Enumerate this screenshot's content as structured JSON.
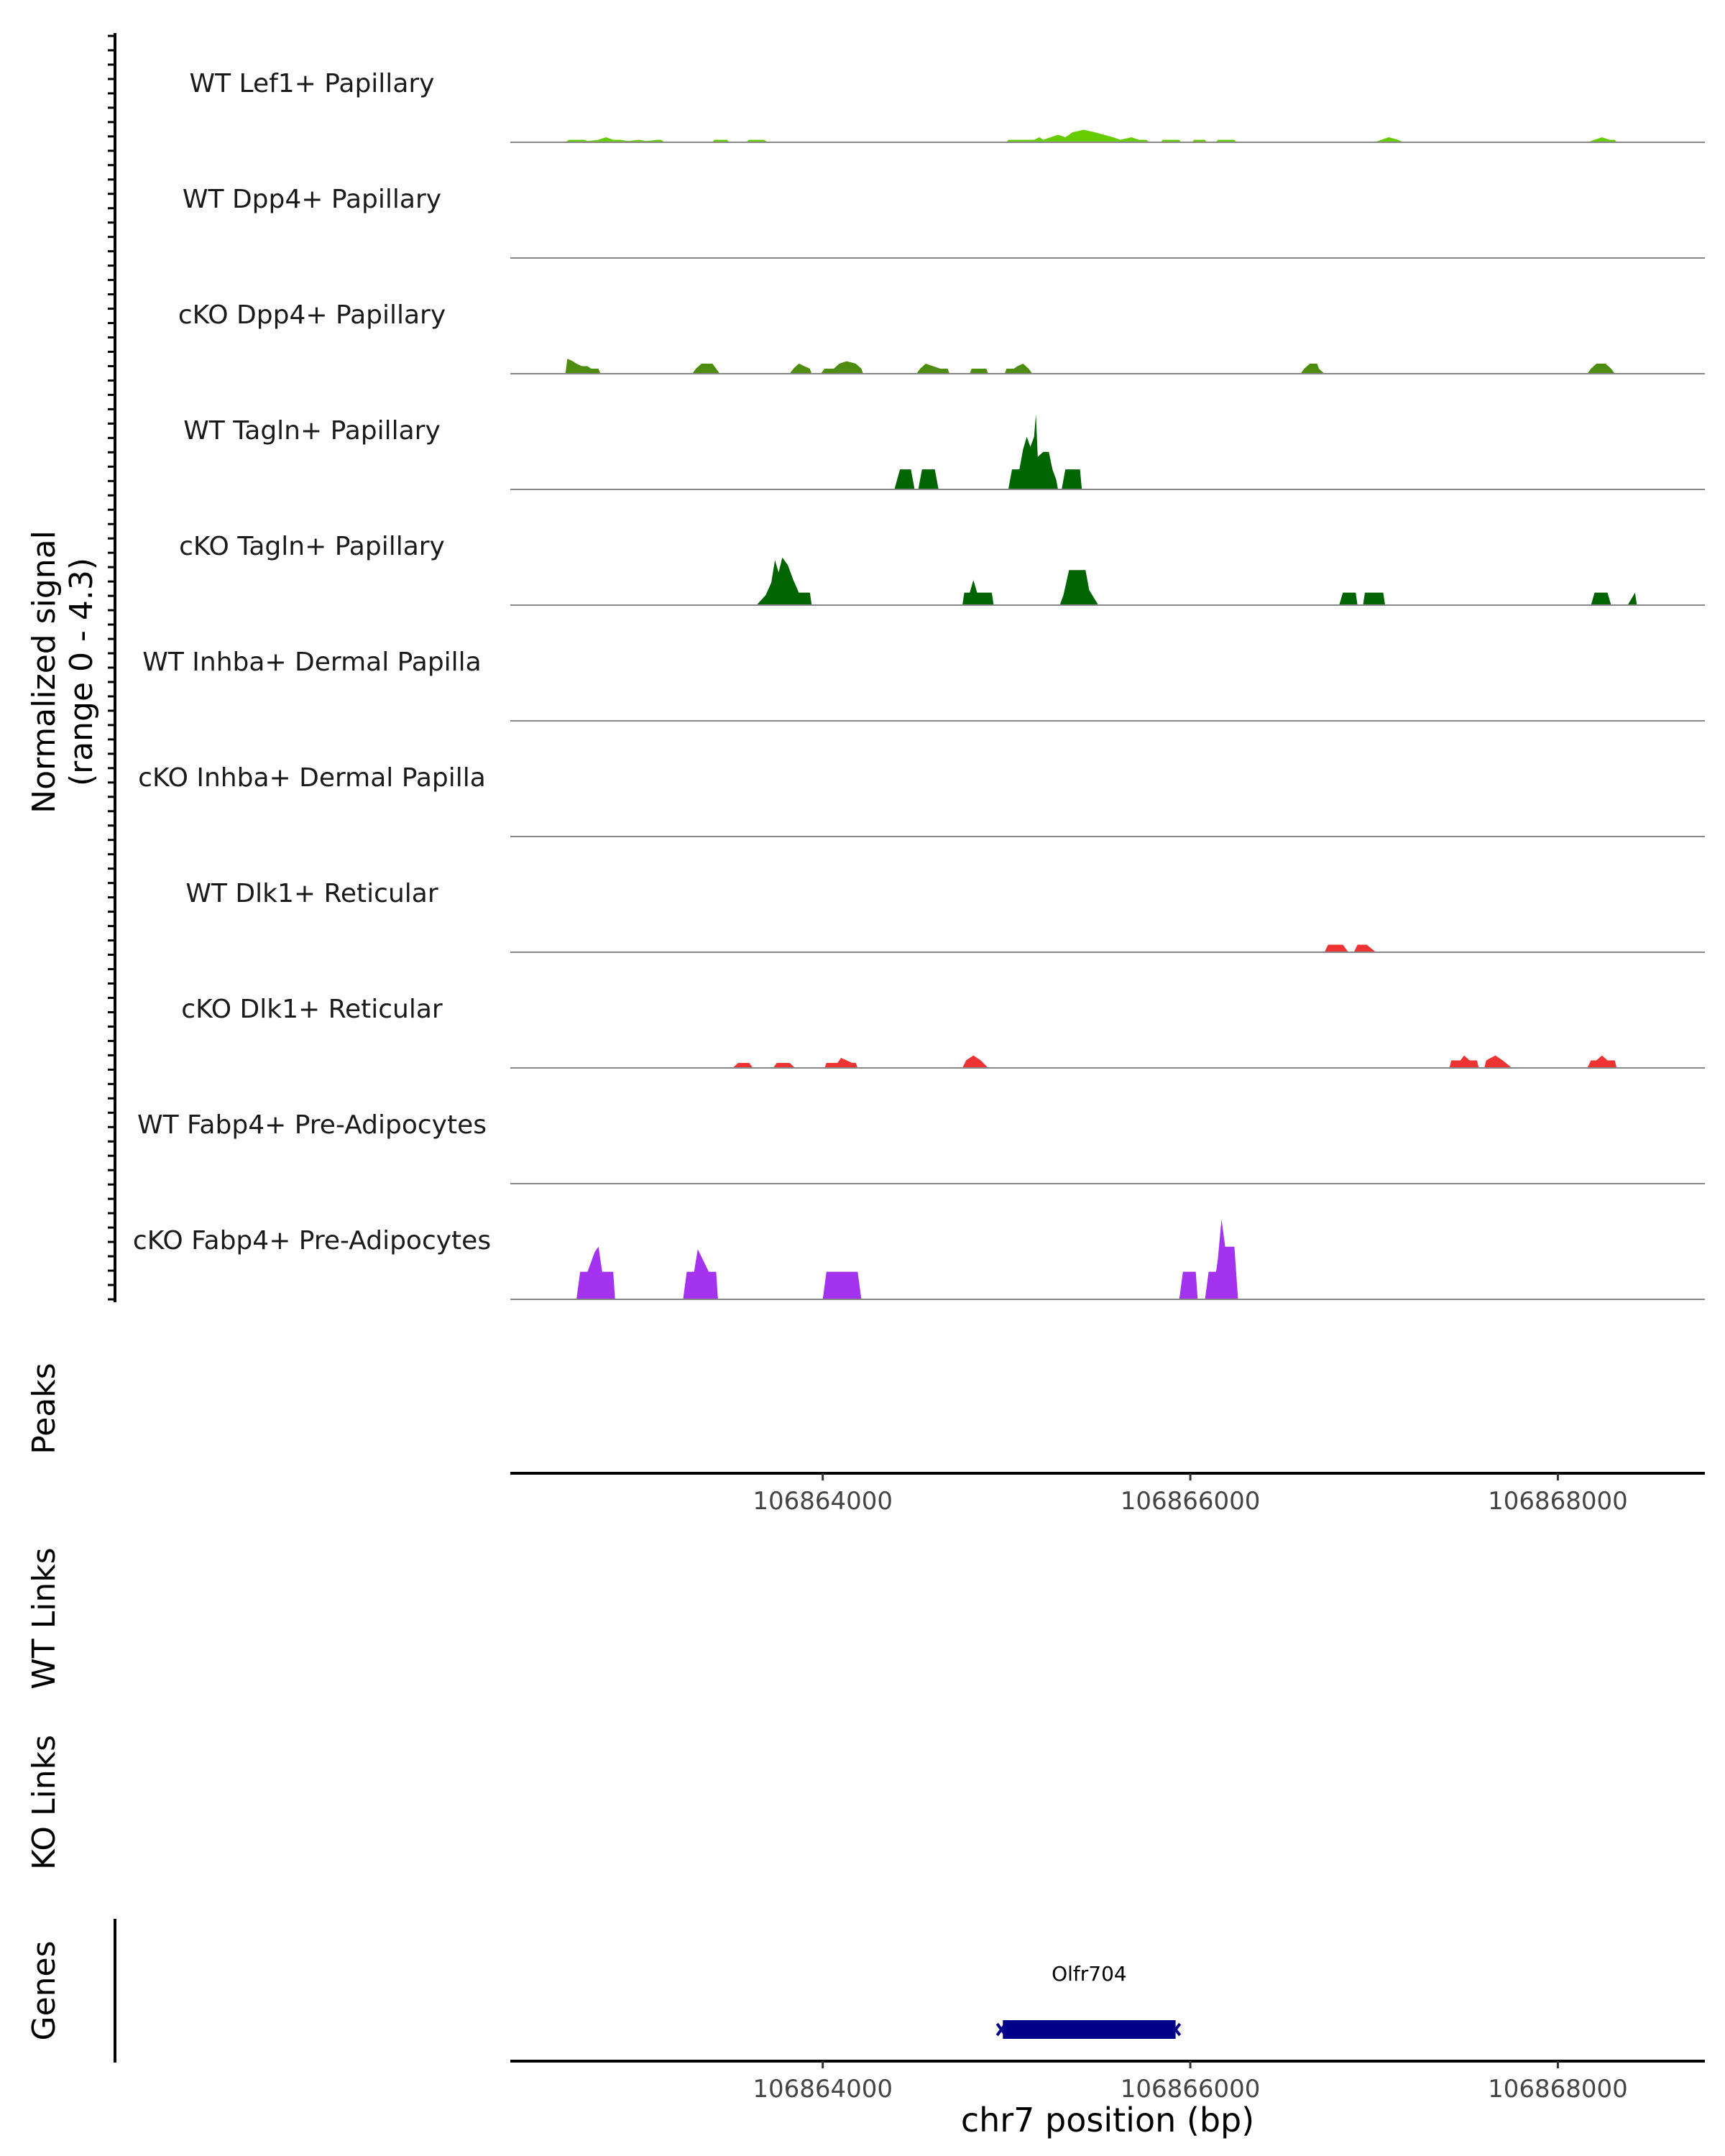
{
  "chart_data": {
    "type": "area",
    "title": "",
    "chromosome": "chr7",
    "xlabel": "chr7 position (bp)",
    "xlim": [
      106862300,
      106868800
    ],
    "x_ticks": [
      106864000,
      106866000,
      106868000
    ],
    "x_tick_labels": [
      "106864000",
      "106866000",
      "106868000"
    ],
    "coverage_ylabel": "Normalized signal",
    "coverage_range_label": "(range 0 - 4.3)",
    "ylim": [
      0,
      4.3
    ],
    "tracks": [
      {
        "name": "WT Lef1+ Papillary",
        "color": "#66CC00",
        "points": [
          [
            106862600,
            0
          ],
          [
            106862620,
            0.1
          ],
          [
            106862700,
            0.1
          ],
          [
            106862720,
            0.05
          ],
          [
            106862780,
            0.1
          ],
          [
            106862820,
            0.2
          ],
          [
            106862860,
            0.1
          ],
          [
            106862900,
            0.1
          ],
          [
            106862940,
            0.05
          ],
          [
            106863000,
            0.1
          ],
          [
            106863040,
            0.05
          ],
          [
            106863100,
            0.1
          ],
          [
            106863120,
            0.1
          ],
          [
            106863140,
            0
          ],
          [
            106863400,
            0
          ],
          [
            106863410,
            0.1
          ],
          [
            106863480,
            0.1
          ],
          [
            106863490,
            0
          ],
          [
            106863580,
            0
          ],
          [
            106863600,
            0.1
          ],
          [
            106863680,
            0.1
          ],
          [
            106863700,
            0
          ],
          [
            106865000,
            0
          ],
          [
            106865010,
            0.1
          ],
          [
            106865150,
            0.1
          ],
          [
            106865180,
            0.2
          ],
          [
            106865200,
            0.1
          ],
          [
            106865240,
            0.2
          ],
          [
            106865280,
            0.3
          ],
          [
            106865320,
            0.2
          ],
          [
            106865360,
            0.4
          ],
          [
            106865420,
            0.5
          ],
          [
            106865480,
            0.4
          ],
          [
            106865530,
            0.3
          ],
          [
            106865580,
            0.2
          ],
          [
            106865620,
            0.1
          ],
          [
            106865680,
            0.2
          ],
          [
            106865720,
            0.1
          ],
          [
            106865760,
            0.1
          ],
          [
            106865780,
            0
          ],
          [
            106865840,
            0
          ],
          [
            106865850,
            0.1
          ],
          [
            106865940,
            0.1
          ],
          [
            106865950,
            0
          ],
          [
            106866010,
            0
          ],
          [
            106866020,
            0.1
          ],
          [
            106866080,
            0.1
          ],
          [
            106866090,
            0
          ],
          [
            106866140,
            0
          ],
          [
            106866150,
            0.1
          ],
          [
            106866240,
            0.1
          ],
          [
            106866250,
            0
          ],
          [
            106867000,
            0
          ],
          [
            106867040,
            0.1
          ],
          [
            106867080,
            0.2
          ],
          [
            106867130,
            0.1
          ],
          [
            106867160,
            0
          ],
          [
            106868160,
            0
          ],
          [
            106868200,
            0.1
          ],
          [
            106868240,
            0.2
          ],
          [
            106868280,
            0.1
          ],
          [
            106868310,
            0.1
          ],
          [
            106868320,
            0
          ]
        ]
      },
      {
        "name": "WT Dpp4+ Papillary",
        "color": "#4D8C0F",
        "points": []
      },
      {
        "name": "cKO Dpp4+ Papillary",
        "color": "#4D8C0F",
        "points": [
          [
            106862600,
            0
          ],
          [
            106862610,
            0.6
          ],
          [
            106862640,
            0.5
          ],
          [
            106862660,
            0.4
          ],
          [
            106862690,
            0.3
          ],
          [
            106862720,
            0.3
          ],
          [
            106862740,
            0.2
          ],
          [
            106862780,
            0.2
          ],
          [
            106862790,
            0
          ],
          [
            106863290,
            0
          ],
          [
            106863310,
            0.2
          ],
          [
            106863340,
            0.4
          ],
          [
            106863400,
            0.4
          ],
          [
            106863420,
            0.2
          ],
          [
            106863440,
            0
          ],
          [
            106863820,
            0
          ],
          [
            106863840,
            0.2
          ],
          [
            106863870,
            0.4
          ],
          [
            106863900,
            0.3
          ],
          [
            106863930,
            0.2
          ],
          [
            106863940,
            0
          ],
          [
            106863990,
            0
          ],
          [
            106864010,
            0.2
          ],
          [
            106864060,
            0.2
          ],
          [
            106864090,
            0.4
          ],
          [
            106864130,
            0.5
          ],
          [
            106864180,
            0.4
          ],
          [
            106864210,
            0.2
          ],
          [
            106864220,
            0
          ],
          [
            106864510,
            0
          ],
          [
            106864530,
            0.2
          ],
          [
            106864560,
            0.4
          ],
          [
            106864600,
            0.3
          ],
          [
            106864640,
            0.2
          ],
          [
            106864680,
            0.2
          ],
          [
            106864690,
            0
          ],
          [
            106864800,
            0
          ],
          [
            106864810,
            0.2
          ],
          [
            106864890,
            0.2
          ],
          [
            106864900,
            0
          ],
          [
            106864990,
            0
          ],
          [
            106865000,
            0.2
          ],
          [
            106865040,
            0.2
          ],
          [
            106865060,
            0.3
          ],
          [
            106865090,
            0.4
          ],
          [
            106865120,
            0.2
          ],
          [
            106865140,
            0
          ],
          [
            106866600,
            0
          ],
          [
            106866620,
            0.2
          ],
          [
            106866650,
            0.4
          ],
          [
            106866690,
            0.4
          ],
          [
            106866700,
            0.2
          ],
          [
            106866730,
            0
          ],
          [
            106868160,
            0
          ],
          [
            106868180,
            0.2
          ],
          [
            106868210,
            0.4
          ],
          [
            106868260,
            0.4
          ],
          [
            106868290,
            0.2
          ],
          [
            106868310,
            0
          ]
        ]
      },
      {
        "name": "WT Tagln+ Papillary",
        "color": "#006400",
        "points": [
          [
            106864390,
            0
          ],
          [
            106864420,
            0.8
          ],
          [
            106864480,
            0.8
          ],
          [
            106864500,
            0
          ],
          [
            106864520,
            0
          ],
          [
            106864540,
            0.8
          ],
          [
            106864610,
            0.8
          ],
          [
            106864630,
            0
          ],
          [
            106865010,
            0
          ],
          [
            106865030,
            0.8
          ],
          [
            106865070,
            0.8
          ],
          [
            106865090,
            1.6
          ],
          [
            106865110,
            2.1
          ],
          [
            106865130,
            1.7
          ],
          [
            106865150,
            2.1
          ],
          [
            106865160,
            3.0
          ],
          [
            106865170,
            1.3
          ],
          [
            106865200,
            1.5
          ],
          [
            106865230,
            1.5
          ],
          [
            106865250,
            0.8
          ],
          [
            106865270,
            0.4
          ],
          [
            106865280,
            0
          ],
          [
            106865300,
            0
          ],
          [
            106865320,
            0.8
          ],
          [
            106865400,
            0.8
          ],
          [
            106865410,
            0
          ]
        ]
      },
      {
        "name": "cKO Tagln+ Papillary",
        "color": "#006400",
        "points": [
          [
            106863640,
            0
          ],
          [
            106863690,
            0.4
          ],
          [
            106863720,
            0.9
          ],
          [
            106863740,
            1.8
          ],
          [
            106863760,
            1.3
          ],
          [
            106863780,
            1.9
          ],
          [
            106863810,
            1.6
          ],
          [
            106863840,
            1.0
          ],
          [
            106863870,
            0.5
          ],
          [
            106863930,
            0.5
          ],
          [
            106863940,
            0
          ],
          [
            106864760,
            0
          ],
          [
            106864770,
            0.5
          ],
          [
            106864800,
            0.5
          ],
          [
            106864820,
            1.0
          ],
          [
            106864840,
            0.5
          ],
          [
            106864920,
            0.5
          ],
          [
            106864930,
            0
          ],
          [
            106865290,
            0
          ],
          [
            106865310,
            0.4
          ],
          [
            106865340,
            1.4
          ],
          [
            106865430,
            1.4
          ],
          [
            106865450,
            0.6
          ],
          [
            106865500,
            0
          ],
          [
            106866810,
            0
          ],
          [
            106866830,
            0.5
          ],
          [
            106866900,
            0.5
          ],
          [
            106866910,
            0
          ],
          [
            106866940,
            0
          ],
          [
            106866950,
            0.5
          ],
          [
            106867050,
            0.5
          ],
          [
            106867060,
            0
          ],
          [
            106868180,
            0
          ],
          [
            106868200,
            0.5
          ],
          [
            106868270,
            0.5
          ],
          [
            106868290,
            0
          ],
          [
            106868380,
            0
          ],
          [
            106868420,
            0.5
          ],
          [
            106868430,
            0
          ]
        ]
      },
      {
        "name": "WT Inhba+ Dermal Papilla",
        "color": "#CC0000",
        "points": []
      },
      {
        "name": "cKO Inhba+ Dermal Papilla",
        "color": "#CC0000",
        "points": []
      },
      {
        "name": "WT Dlk1+ Reticular",
        "color": "#EE3333",
        "points": [
          [
            106866730,
            0
          ],
          [
            106866750,
            0.3
          ],
          [
            106866830,
            0.3
          ],
          [
            106866860,
            0
          ],
          [
            106866890,
            0
          ],
          [
            106866910,
            0.3
          ],
          [
            106866960,
            0.3
          ],
          [
            106867010,
            0
          ],
          [
            106867020,
            0
          ]
        ]
      },
      {
        "name": "cKO Dlk1+ Reticular",
        "color": "#EE3333",
        "points": [
          [
            106863510,
            0
          ],
          [
            106863540,
            0.2
          ],
          [
            106863600,
            0.2
          ],
          [
            106863620,
            0
          ],
          [
            106863730,
            0
          ],
          [
            106863750,
            0.2
          ],
          [
            106863820,
            0.2
          ],
          [
            106863850,
            0
          ],
          [
            106864010,
            0
          ],
          [
            106864020,
            0.2
          ],
          [
            106864080,
            0.2
          ],
          [
            106864100,
            0.4
          ],
          [
            106864130,
            0.3
          ],
          [
            106864160,
            0.2
          ],
          [
            106864180,
            0.2
          ],
          [
            106864190,
            0
          ],
          [
            106864760,
            0
          ],
          [
            106864780,
            0.3
          ],
          [
            106864820,
            0.5
          ],
          [
            106864860,
            0.3
          ],
          [
            106864900,
            0
          ],
          [
            106867410,
            0
          ],
          [
            106867420,
            0.3
          ],
          [
            106867470,
            0.3
          ],
          [
            106867490,
            0.5
          ],
          [
            106867520,
            0.3
          ],
          [
            106867560,
            0.3
          ],
          [
            106867570,
            0
          ],
          [
            106867600,
            0
          ],
          [
            106867610,
            0.3
          ],
          [
            106867660,
            0.5
          ],
          [
            106867700,
            0.3
          ],
          [
            106867750,
            0
          ],
          [
            106868160,
            0
          ],
          [
            106868180,
            0.3
          ],
          [
            106868210,
            0.3
          ],
          [
            106868240,
            0.5
          ],
          [
            106868270,
            0.3
          ],
          [
            106868310,
            0.3
          ],
          [
            106868320,
            0
          ]
        ]
      },
      {
        "name": "WT Fabp4+ Pre-Adipocytes",
        "color": "#A333EE",
        "points": []
      },
      {
        "name": "cKO Fabp4+ Pre-Adipocytes",
        "color": "#A333EE",
        "points": [
          [
            106862660,
            0
          ],
          [
            106862680,
            1.1
          ],
          [
            106862720,
            1.1
          ],
          [
            106862760,
            1.9
          ],
          [
            106862780,
            2.1
          ],
          [
            106862800,
            1.1
          ],
          [
            106862860,
            1.1
          ],
          [
            106862870,
            0
          ],
          [
            106863240,
            0
          ],
          [
            106863260,
            1.1
          ],
          [
            106863300,
            1.1
          ],
          [
            106863320,
            2.0
          ],
          [
            106863380,
            1.1
          ],
          [
            106863420,
            1.1
          ],
          [
            106863430,
            0
          ],
          [
            106864000,
            0
          ],
          [
            106864020,
            1.1
          ],
          [
            106864190,
            1.1
          ],
          [
            106864210,
            0
          ],
          [
            106865940,
            0
          ],
          [
            106865960,
            1.1
          ],
          [
            106866030,
            1.1
          ],
          [
            106866040,
            0
          ],
          [
            106866080,
            0
          ],
          [
            106866100,
            1.1
          ],
          [
            106866140,
            1.1
          ],
          [
            106866150,
            1.6
          ],
          [
            106866170,
            3.2
          ],
          [
            106866190,
            2.1
          ],
          [
            106866240,
            2.1
          ],
          [
            106866260,
            0
          ]
        ]
      }
    ],
    "peaks_label": "Peaks",
    "links_labels": [
      "WT Links",
      "KO Links"
    ],
    "genes_label": "Genes",
    "genes": [
      {
        "name": "Olfr704",
        "start": 106864980,
        "end": 106865920,
        "strand": "-",
        "color": "#00008B"
      }
    ]
  }
}
